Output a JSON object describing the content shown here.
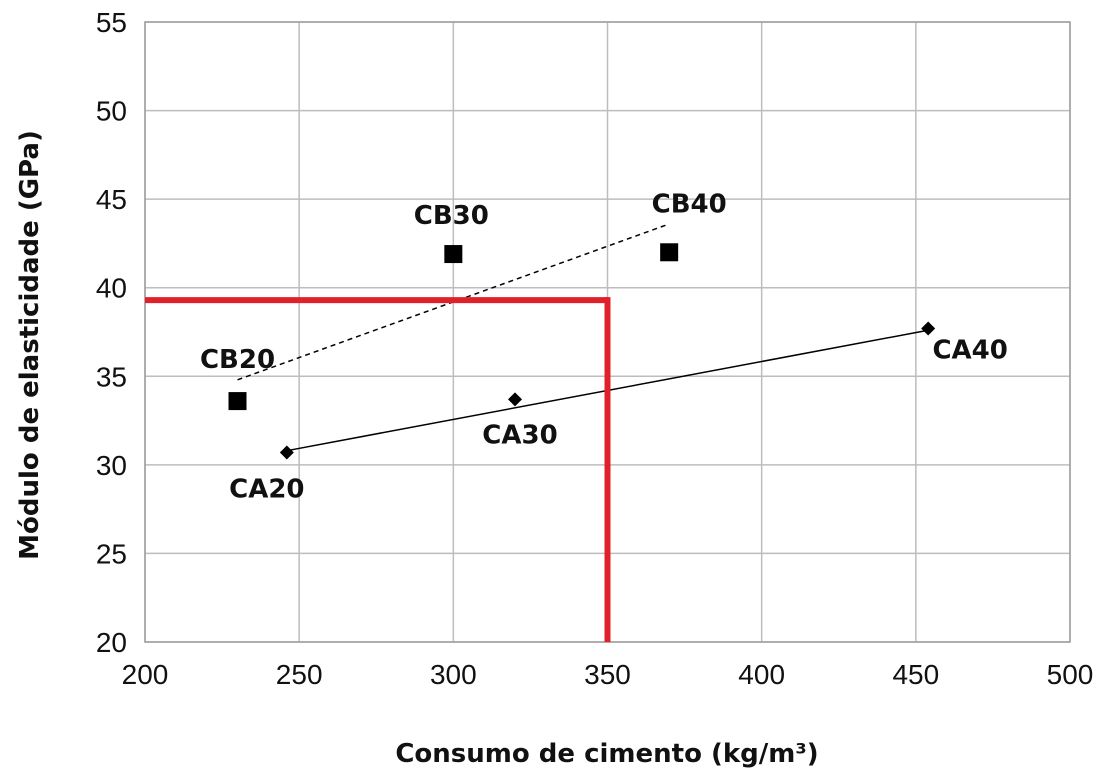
{
  "chart_data": {
    "type": "scatter",
    "xlabel": "Consumo de cimento (kg/m³)",
    "ylabel": "Módulo de elasticidade (GPa)",
    "xlim": [
      200,
      500
    ],
    "ylim": [
      20,
      55
    ],
    "xticks": [
      200,
      250,
      300,
      350,
      400,
      450,
      500
    ],
    "yticks": [
      20,
      25,
      30,
      35,
      40,
      45,
      50,
      55
    ],
    "grid": true,
    "series": [
      {
        "marker": "square",
        "color": "#000000",
        "points": [
          {
            "label": "CB20",
            "x": 230,
            "y": 33.6
          },
          {
            "label": "CB30",
            "x": 300,
            "y": 41.9
          },
          {
            "label": "CB40",
            "x": 370,
            "y": 42.0
          }
        ],
        "trendline": {
          "style": "dashed",
          "x": [
            230,
            370
          ],
          "y": [
            34.8,
            43.6
          ]
        }
      },
      {
        "marker": "diamond",
        "color": "#000000",
        "points": [
          {
            "label": "CA20",
            "x": 246,
            "y": 30.7
          },
          {
            "label": "CA30",
            "x": 320,
            "y": 33.7
          },
          {
            "label": "CA40",
            "x": 454,
            "y": 37.7
          }
        ],
        "trendline": {
          "style": "solid",
          "x": [
            246,
            454
          ],
          "y": [
            30.8,
            37.6
          ]
        }
      }
    ],
    "annotation": {
      "color": "#e0202a",
      "x": 350,
      "y": 39.3
    }
  }
}
